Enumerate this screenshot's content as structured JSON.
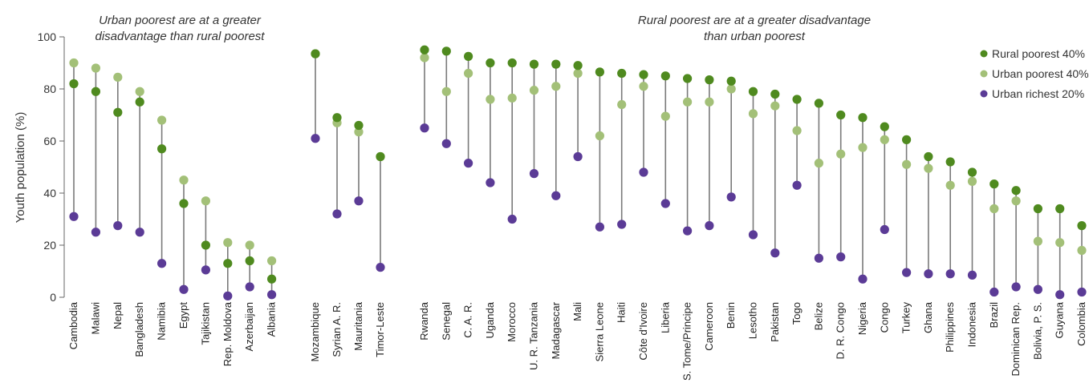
{
  "chart_data": {
    "type": "scatter",
    "ylabel": "Youth population (%)",
    "ylim": [
      0,
      100
    ],
    "yticks": [
      0,
      20,
      40,
      60,
      80,
      100
    ],
    "annotations": [
      {
        "lines": [
          "Urban poorest are at a greater",
          "disadvantage than rural poorest"
        ]
      },
      {
        "lines": [
          "Rural poorest are at a greater disadvantage",
          "than urban poorest"
        ]
      }
    ],
    "legend_position": "top-right",
    "series": [
      {
        "name": "Rural poorest 40%",
        "color": "#4f8a1f"
      },
      {
        "name": "Urban poorest 40%",
        "color": "#a3c078"
      },
      {
        "name": "Urban richest 20%",
        "color": "#5b3b96"
      }
    ],
    "groups": [
      [
        {
          "c": "Cambodia",
          "r": 82,
          "u": 90,
          "ri": 31
        },
        {
          "c": "Malawi",
          "r": 79,
          "u": 88,
          "ri": 25
        },
        {
          "c": "Nepal",
          "r": 71,
          "u": 84.5,
          "ri": 27.5
        },
        {
          "c": "Bangladesh",
          "r": 75,
          "u": 79,
          "ri": 25
        },
        {
          "c": "Namibia",
          "r": 57,
          "u": 68,
          "ri": 13
        },
        {
          "c": "Egypt",
          "r": 36,
          "u": 45,
          "ri": 3
        },
        {
          "c": "Tajikistan",
          "r": 20,
          "u": 37,
          "ri": 10.5
        },
        {
          "c": "Rep. Moldova",
          "r": 13,
          "u": 21,
          "ri": 0.5
        },
        {
          "c": "Azerbaijan",
          "r": 14,
          "u": 20,
          "ri": 4
        },
        {
          "c": "Albania",
          "r": 7,
          "u": 14,
          "ri": 1
        }
      ],
      [
        {
          "c": "Mozambique",
          "r": 93.5,
          "u": 93.5,
          "ri": 61
        },
        {
          "c": "Syrian A. R.",
          "r": 69,
          "u": 67,
          "ri": 32
        },
        {
          "c": "Mauritania",
          "r": 66,
          "u": 63.5,
          "ri": 37
        },
        {
          "c": "Timor-Leste",
          "r": 54,
          "u": 54,
          "ri": 11.5
        }
      ],
      [
        {
          "c": "Rwanda",
          "r": 95,
          "u": 92,
          "ri": 65
        },
        {
          "c": "Senegal",
          "r": 94.5,
          "u": 79,
          "ri": 59
        },
        {
          "c": "C. A. R.",
          "r": 92.5,
          "u": 86,
          "ri": 51.5
        },
        {
          "c": "Uganda",
          "r": 90,
          "u": 76,
          "ri": 44
        },
        {
          "c": "Morocco",
          "r": 90,
          "u": 76.5,
          "ri": 30
        },
        {
          "c": "U. R. Tanzania",
          "r": 89.5,
          "u": 79.5,
          "ri": 47.5
        },
        {
          "c": "Madagascar",
          "r": 89.5,
          "u": 81,
          "ri": 39
        },
        {
          "c": "Mali",
          "r": 89,
          "u": 86,
          "ri": 54
        },
        {
          "c": "Sierra Leone",
          "r": 86.5,
          "u": 62,
          "ri": 27
        },
        {
          "c": "Haiti",
          "r": 86,
          "u": 74,
          "ri": 28
        },
        {
          "c": "Côte d'Ivoire",
          "r": 85.5,
          "u": 81,
          "ri": 48
        },
        {
          "c": "Liberia",
          "r": 85,
          "u": 69.5,
          "ri": 36
        },
        {
          "c": "S. Tome/Principe",
          "r": 84,
          "u": 75,
          "ri": 25.5
        },
        {
          "c": "Cameroon",
          "r": 83.5,
          "u": 75,
          "ri": 27.5
        },
        {
          "c": "Benin",
          "r": 83,
          "u": 80,
          "ri": 38.5
        },
        {
          "c": "Lesotho",
          "r": 79,
          "u": 70.5,
          "ri": 24
        },
        {
          "c": "Pakistan",
          "r": 78,
          "u": 73.5,
          "ri": 17
        },
        {
          "c": "Togo",
          "r": 76,
          "u": 64,
          "ri": 43
        },
        {
          "c": "Belize",
          "r": 74.5,
          "u": 51.5,
          "ri": 15
        },
        {
          "c": "D. R. Congo",
          "r": 70,
          "u": 55,
          "ri": 15.5
        },
        {
          "c": "Nigeria",
          "r": 69,
          "u": 57.5,
          "ri": 7
        },
        {
          "c": "Congo",
          "r": 65.5,
          "u": 60.5,
          "ri": 26
        },
        {
          "c": "Turkey",
          "r": 60.5,
          "u": 51,
          "ri": 9.5
        },
        {
          "c": "Ghana",
          "r": 54,
          "u": 49.5,
          "ri": 9
        },
        {
          "c": "Philippines",
          "r": 52,
          "u": 43,
          "ri": 9
        },
        {
          "c": "Indonesia",
          "r": 48,
          "u": 44.5,
          "ri": 8.5
        },
        {
          "c": "Brazil",
          "r": 43.5,
          "u": 34,
          "ri": 2
        },
        {
          "c": "Dominican Rep.",
          "r": 41,
          "u": 37,
          "ri": 4
        },
        {
          "c": "Bolivia, P. S.",
          "r": 34,
          "u": 21.5,
          "ri": 3
        },
        {
          "c": "Guyana",
          "r": 34,
          "u": 21,
          "ri": 1
        },
        {
          "c": "Colombia",
          "r": 27.5,
          "u": 18,
          "ri": 2
        }
      ]
    ]
  }
}
